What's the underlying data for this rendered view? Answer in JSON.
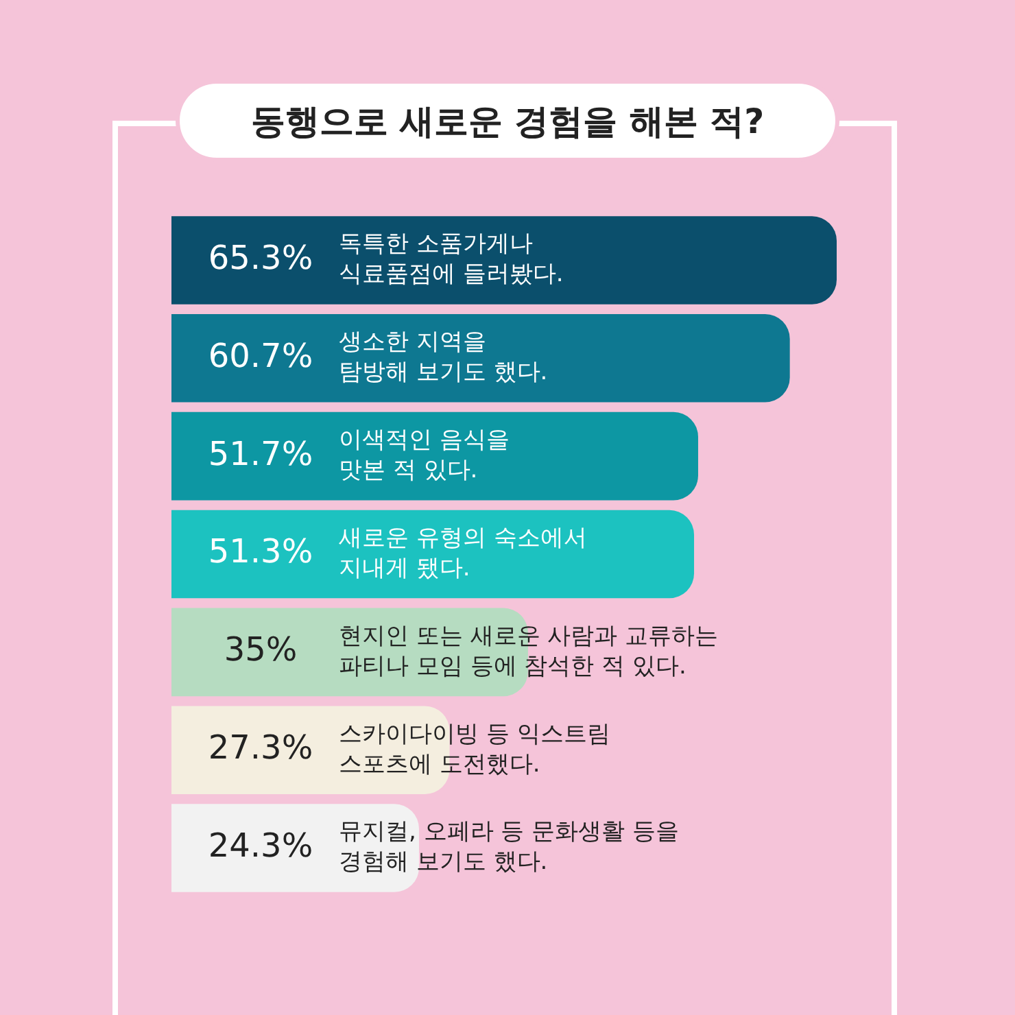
{
  "chart_data": {
    "type": "bar",
    "orientation": "horizontal",
    "title": "동행으로 새로운 경험을 해본 적?",
    "categories": [
      "독특한 소품가게나\n식료품점에 들러봤다.",
      "생소한 지역을\n탐방해 보기도 했다.",
      "이색적인 음식을\n맛본 적 있다.",
      "새로운 유형의 숙소에서\n지내게 됐다.",
      "현지인 또는 새로운 사람과 교류하는\n파티나 모임 등에 참석한 적 있다.",
      "스카이다이빙 등 익스트림\n스포츠에 도전했다.",
      "뮤지컬, 오페라 등 문화생활 등을\n경험해 보기도 했다."
    ],
    "values": [
      65.3,
      60.7,
      51.7,
      51.3,
      35,
      27.3,
      24.3
    ],
    "value_labels": [
      "65.3%",
      "60.7%",
      "51.7%",
      "51.3%",
      "35%",
      "27.3%",
      "24.3%"
    ],
    "colors": [
      "#0b4f6c",
      "#0e7891",
      "#0d97a3",
      "#1cc2c0",
      "#b6dcc1",
      "#f4eedf",
      "#f2f2f2"
    ],
    "legend": false,
    "tick_labels": false
  }
}
